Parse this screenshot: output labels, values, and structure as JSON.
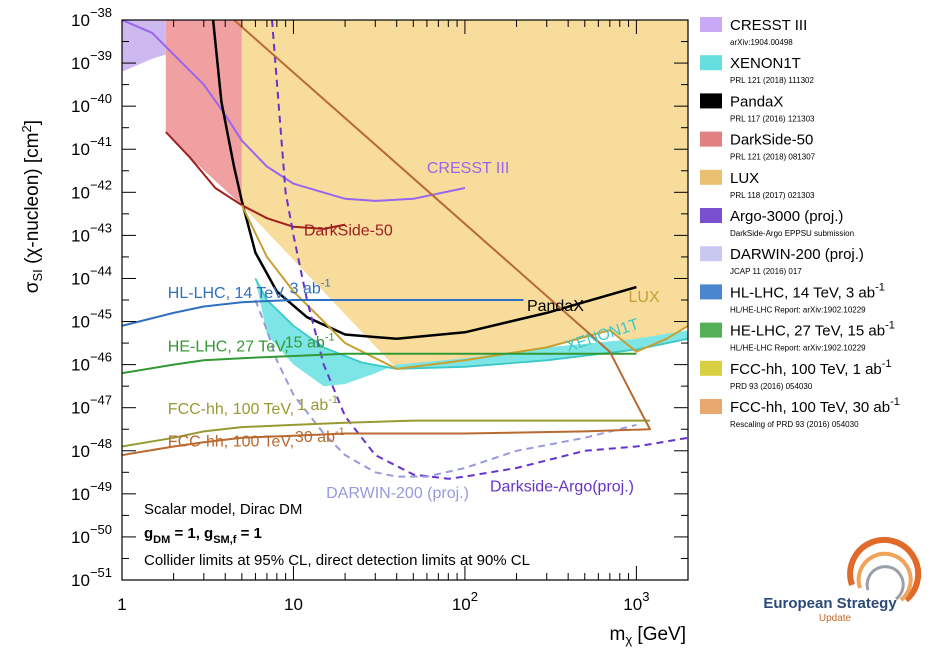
{
  "chart_data": {
    "type": "line",
    "xlabel": "mχ [GeV]",
    "ylabel": "σSI (χ-nucleon) [cm²]",
    "x_scale": "log",
    "y_scale": "log",
    "xlim": [
      1,
      2000
    ],
    "ylim": [
      1e-51,
      1e-38
    ],
    "x_ticks": [
      {
        "value": 1,
        "label": "1"
      },
      {
        "value": 10,
        "label": "10"
      },
      {
        "value": 100,
        "label": "10",
        "exp": "2"
      },
      {
        "value": 1000,
        "label": "10",
        "exp": "3"
      }
    ],
    "y_ticks": [
      {
        "value": 1e-38,
        "exp": "−38"
      },
      {
        "value": 1e-39,
        "exp": "−39"
      },
      {
        "value": 1e-40,
        "exp": "−40"
      },
      {
        "value": 1e-41,
        "exp": "−41"
      },
      {
        "value": 1e-42,
        "exp": "−42"
      },
      {
        "value": 1e-43,
        "exp": "−43"
      },
      {
        "value": 1e-44,
        "exp": "−44"
      },
      {
        "value": 1e-45,
        "exp": "−45"
      },
      {
        "value": 1e-46,
        "exp": "−46"
      },
      {
        "value": 1e-47,
        "exp": "−47"
      },
      {
        "value": 1e-48,
        "exp": "−48"
      },
      {
        "value": 1e-49,
        "exp": "−49"
      },
      {
        "value": 1e-50,
        "exp": "−50"
      },
      {
        "value": 1e-51,
        "exp": "−51"
      }
    ],
    "regions": [
      {
        "id": "lux-region",
        "color": "#f7dc9c",
        "x": [
          5,
          5,
          7,
          10,
          20,
          40,
          100,
          300,
          1000,
          2000,
          2000,
          1000,
          700,
          300,
          100,
          40
        ],
        "logy": [
          -42.3,
          -38,
          -38,
          -38,
          -38,
          -38,
          -38,
          -38,
          -38,
          -38,
          -45.1,
          -45.7,
          -45.2,
          -45.6,
          -45.9,
          -46.1
        ]
      },
      {
        "id": "xenon-region",
        "color": "#7de5e5",
        "x": [
          6,
          7,
          10,
          15,
          25,
          40,
          100,
          300,
          1000,
          2000,
          2000,
          1000,
          300,
          100,
          40,
          30,
          20,
          15,
          10,
          7,
          6
        ],
        "logy": [
          -44.0,
          -44.5,
          -45.1,
          -45.6,
          -45.95,
          -46.1,
          -46.05,
          -45.9,
          -45.65,
          -45.4,
          -45.2,
          -45.4,
          -45.6,
          -45.85,
          -46.0,
          -46.2,
          -46.45,
          -46.5,
          -46.0,
          -45.3,
          -44.0
        ]
      },
      {
        "id": "darkside-region",
        "color": "#f0a0a0",
        "x": [
          1.8,
          1.8,
          5,
          5,
          2.5
        ],
        "logy": [
          -40.6,
          -38,
          -38,
          -42.3,
          -41.2
        ]
      },
      {
        "id": "cresst-region",
        "color": "#cdb8f0",
        "x": [
          1,
          1,
          1.8,
          1.8,
          1.5
        ],
        "logy": [
          -39.2,
          -38,
          -38,
          -38.8,
          -38.9
        ]
      }
    ],
    "series": [
      {
        "name": "CRESST III",
        "color": "#9966ee",
        "width": 2,
        "dash": "",
        "x": [
          1,
          1.5,
          2,
          3,
          4,
          5,
          7,
          10,
          20,
          30,
          50,
          100
        ],
        "logy": [
          -38.0,
          -38.3,
          -38.8,
          -39.5,
          -40.2,
          -40.8,
          -41.4,
          -41.8,
          -42.15,
          -42.2,
          -42.15,
          -41.9
        ]
      },
      {
        "name": "XENON1T",
        "color": "#3dc8c8",
        "width": 1.8,
        "dash": "",
        "x": [
          6,
          7,
          10,
          15,
          25,
          40,
          100,
          300,
          1000,
          2000
        ],
        "logy": [
          -44.0,
          -44.5,
          -45.1,
          -45.6,
          -45.95,
          -46.1,
          -46.05,
          -45.9,
          -45.65,
          -45.4
        ]
      },
      {
        "name": "PandaX",
        "color": "#000000",
        "width": 2.5,
        "dash": "",
        "x": [
          3.4,
          3.8,
          4.5,
          5,
          6,
          8,
          12,
          20,
          40,
          100,
          300,
          1000
        ],
        "logy": [
          -38.0,
          -39.9,
          -41.4,
          -42.2,
          -43.4,
          -44.3,
          -44.9,
          -45.3,
          -45.4,
          -45.25,
          -44.8,
          -44.2
        ]
      },
      {
        "name": "DarkSide-50",
        "color": "#a02020",
        "width": 2,
        "dash": "",
        "x": [
          1.8,
          2.5,
          3.5,
          5,
          7,
          10,
          15,
          20
        ],
        "logy": [
          -40.6,
          -41.2,
          -41.9,
          -42.3,
          -42.6,
          -42.8,
          -42.85,
          -42.75
        ]
      },
      {
        "name": "LUX",
        "color": "#c8a030",
        "width": 2,
        "dash": "",
        "x": [
          5,
          7,
          10,
          15,
          20,
          40,
          100,
          300,
          700,
          1000,
          1500,
          2000
        ],
        "logy": [
          -42.3,
          -43.5,
          -44.3,
          -45.0,
          -45.5,
          -46.1,
          -45.9,
          -45.6,
          -45.2,
          -45.7,
          -45.4,
          -45.1
        ]
      },
      {
        "name": "Argo-3000 (proj.)",
        "color": "#6633cc",
        "width": 2,
        "dash": "7,5",
        "x": [
          7.5,
          9,
          10,
          12,
          15,
          20,
          30,
          50,
          80,
          100,
          200,
          500,
          1000,
          2000
        ],
        "logy": [
          -38.0,
          -42.0,
          -43.0,
          -44.5,
          -46.0,
          -47.2,
          -48.1,
          -48.55,
          -48.65,
          -48.6,
          -48.4,
          -48.0,
          -47.9,
          -47.7
        ]
      },
      {
        "name": "DARWIN-200 (proj.)",
        "color": "#9999dd",
        "width": 2,
        "dash": "7,5",
        "x": [
          6,
          7,
          8,
          10,
          15,
          20,
          30,
          40,
          60,
          100,
          200,
          500,
          1000
        ],
        "logy": [
          -44.5,
          -45.2,
          -45.9,
          -46.7,
          -47.6,
          -48.1,
          -48.5,
          -48.6,
          -48.6,
          -48.4,
          -48.0,
          -47.7,
          -47.4
        ]
      },
      {
        "name": "HL-LHC, 14 TeV, 3 ab⁻¹",
        "color": "#3070c0",
        "width": 2,
        "dash": "",
        "x": [
          1,
          2,
          3,
          5,
          10,
          20,
          50,
          100,
          220
        ],
        "logy": [
          -45.1,
          -44.8,
          -44.65,
          -44.55,
          -44.5,
          -44.5,
          -44.5,
          -44.5,
          -44.5
        ]
      },
      {
        "name": "HE-LHC, 27 TeV, 15 ab⁻¹",
        "color": "#339933",
        "width": 2,
        "dash": "",
        "x": [
          1,
          2,
          3,
          5,
          10,
          20,
          50,
          100,
          500,
          1000
        ],
        "logy": [
          -46.2,
          -46.0,
          -45.9,
          -45.85,
          -45.8,
          -45.75,
          -45.75,
          -45.75,
          -45.75,
          -45.75
        ]
      },
      {
        "name": "FCC-hh, 100 TeV, 1 ab⁻¹",
        "color": "#999933",
        "width": 2,
        "dash": "",
        "x": [
          1,
          2,
          3,
          5,
          10,
          20,
          50,
          100,
          500,
          1200
        ],
        "logy": [
          -47.9,
          -47.7,
          -47.55,
          -47.45,
          -47.4,
          -47.35,
          -47.3,
          -47.3,
          -47.3,
          -47.3
        ]
      },
      {
        "name": "FCC-hh, 100 TeV, 30 ab⁻¹",
        "color": "#b86a30",
        "width": 2,
        "dash": "",
        "x": [
          1,
          2,
          3,
          5,
          10,
          20,
          50,
          100,
          500,
          1200,
          1000,
          700,
          4.5
        ],
        "logy": [
          -48.1,
          -47.9,
          -47.8,
          -47.7,
          -47.65,
          -47.6,
          -47.6,
          -47.6,
          -47.55,
          -47.5,
          -46.9,
          -45.7,
          -38.0
        ]
      }
    ],
    "curve_labels": [
      {
        "text": "CRESST III",
        "x": 60,
        "logy": -41.55,
        "color": "#9966ee",
        "anchor": "start"
      },
      {
        "text": "DarkSide-50",
        "x": 11.5,
        "logy": -43.0,
        "color": "#a02020",
        "anchor": "start"
      },
      {
        "text": "PandaX",
        "x": 230,
        "logy": -44.75,
        "color": "#000000",
        "anchor": "start"
      },
      {
        "text": "LUX",
        "x": 900,
        "logy": -44.55,
        "color": "#c8a030",
        "anchor": "start"
      },
      {
        "text": "XENON1T",
        "x": 400,
        "logy": -45.7,
        "color": "#3dc8c8",
        "anchor": "start",
        "rotate": -18
      },
      {
        "text": "HL-LHC, 14 TeV,",
        "x": 1.85,
        "logy": -44.45,
        "color": "#3070c0",
        "anchor": "start"
      },
      {
        "text": "3 ab",
        "x": 9.5,
        "logy": -44.35,
        "color": "#3070c0",
        "anchor": "start",
        "sup": "-1"
      },
      {
        "text": "HE-LHC, 27 TeV,",
        "x": 1.85,
        "logy": -45.7,
        "color": "#339933",
        "anchor": "start"
      },
      {
        "text": "15 ab",
        "x": 8.9,
        "logy": -45.6,
        "color": "#339933",
        "anchor": "start",
        "sup": "-1"
      },
      {
        "text": "FCC-hh, 100 TeV,",
        "x": 1.85,
        "logy": -47.15,
        "color": "#999933",
        "anchor": "start"
      },
      {
        "text": "1 ab",
        "x": 10.5,
        "logy": -47.05,
        "color": "#999933",
        "anchor": "start",
        "sup": "-1"
      },
      {
        "text": "FCC-hh, 100 TeV,",
        "x": 1.85,
        "logy": -47.9,
        "color": "#b86a30",
        "anchor": "start"
      },
      {
        "text": "30 ab",
        "x": 10.2,
        "logy": -47.8,
        "color": "#b86a30",
        "anchor": "start",
        "sup": "-1"
      },
      {
        "text": "DARWIN-200 (proj.)",
        "x": 15.5,
        "logy": -49.1,
        "color": "#9999dd",
        "anchor": "start"
      },
      {
        "text": "Darkside-Argo(proj.)",
        "x": 140,
        "logy": -48.95,
        "color": "#6633cc",
        "anchor": "start"
      }
    ],
    "notes": {
      "line1": "Scalar model, Dirac DM",
      "line2_parts": [
        {
          "t": "g",
          "style": "bold"
        },
        {
          "t": "DM",
          "style": "bold-sub"
        },
        {
          "t": " = 1, g",
          "style": "bold"
        },
        {
          "t": "SM,f",
          "style": "bold-sub"
        },
        {
          "t": " = 1",
          "style": "bold"
        }
      ],
      "line3": "Collider limits at 95% CL, direct detection limits at 90% CL"
    },
    "legend": [
      {
        "name": "CRESST III",
        "ref": "arXiv:1904.00498",
        "color": "#c9a8f5",
        "type": "band"
      },
      {
        "name": "XENON1T",
        "ref": "PRL 121 (2018) 111302",
        "color": "#66dede",
        "type": "band"
      },
      {
        "name": "PandaX",
        "ref": "PRL 117 (2016) 121303",
        "color": "#000000",
        "type": "band"
      },
      {
        "name": "DarkSide-50",
        "ref": "PRL 121 (2018) 081307",
        "color": "#e08080",
        "type": "band"
      },
      {
        "name": "LUX",
        "ref": "PRL 118 (2017) 021303",
        "color": "#e8c070",
        "type": "band"
      },
      {
        "name": "Argo-3000 (proj.)",
        "ref": "DarkSide-Argo EPPSU submission",
        "color": "#7a4fd0",
        "type": "band"
      },
      {
        "name": "DARWIN-200 (proj.)",
        "ref": "JCAP 11 (2016) 017",
        "color": "#c8c8f0",
        "type": "band"
      },
      {
        "name": "HL-LHC, 14 TeV,  3 ab",
        "sup": "-1",
        "ref": "HL/HE-LHC Report: arXiv:1902.10229",
        "color": "#4a86d0",
        "type": "band"
      },
      {
        "name": "HE-LHC, 27 TeV,  15 ab",
        "sup": "-1",
        "ref": "HL/HE-LHC Report: arXiv:1902.10229",
        "color": "#55b055",
        "type": "band"
      },
      {
        "name": "FCC-hh, 100 TeV,  1 ab",
        "sup": "-1",
        "ref": "PRD 93 (2016) 054030",
        "color": "#d8d040",
        "type": "band"
      },
      {
        "name": "FCC-hh, 100 TeV,  30 ab",
        "sup": "-1",
        "ref": "Rescaling of PRD 93 (2016) 054030",
        "color": "#e8a870",
        "type": "band"
      }
    ]
  },
  "logo": {
    "line1": "European Strategy",
    "line2": "Update",
    "colors": [
      "#e06a2a",
      "#f2a35a",
      "#9aa0a8"
    ]
  }
}
